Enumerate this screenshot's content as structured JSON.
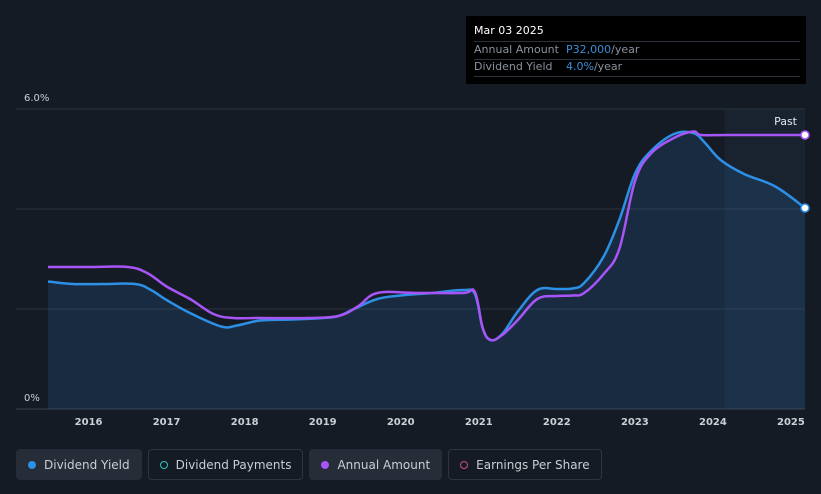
{
  "tooltip": {
    "date": "Mar 03 2025",
    "rows": [
      {
        "label": "Annual Amount",
        "value": "P32,000",
        "unit": "/year"
      },
      {
        "label": "Dividend Yield",
        "value": "4.0%",
        "unit": "/year"
      }
    ]
  },
  "legend": [
    {
      "label": "Dividend Yield",
      "color": "#2d8fe6",
      "style": "filled-dot",
      "active": true
    },
    {
      "label": "Dividend Payments",
      "color": "#2ec4b6",
      "style": "hollow-dot",
      "active": false
    },
    {
      "label": "Annual Amount",
      "color": "#a855f7",
      "style": "filled-dot",
      "active": true
    },
    {
      "label": "Earnings Per Share",
      "color": "#d04a7a",
      "style": "hollow-dot",
      "active": false
    }
  ],
  "chart_data": {
    "type": "line",
    "y_tick_labels": [
      "6.0%",
      "0%"
    ],
    "ylim": [
      0,
      6.0
    ],
    "x_tick_labels": [
      "2016",
      "2017",
      "2018",
      "2019",
      "2020",
      "2021",
      "2022",
      "2023",
      "2024",
      "2025"
    ],
    "xlim": [
      2015.48,
      2025.18
    ],
    "past_region_start": 2024.15,
    "past_label": "Past",
    "grid": true,
    "colors": {
      "yield": "#2d8fe6",
      "amount": "#a855f7"
    },
    "series": [
      {
        "name": "Dividend Yield",
        "area_fill": true,
        "x": [
          2015.48,
          2015.8,
          2016.2,
          2016.6,
          2016.8,
          2017.0,
          2017.3,
          2017.7,
          2017.9,
          2018.2,
          2018.6,
          2019.0,
          2019.2,
          2019.4,
          2019.7,
          2020.0,
          2020.4,
          2020.8,
          2020.95,
          2021.05,
          2021.15,
          2021.3,
          2021.5,
          2021.75,
          2022.0,
          2022.2,
          2022.35,
          2022.6,
          2022.8,
          2023.0,
          2023.2,
          2023.5,
          2023.75,
          2023.9,
          2024.1,
          2024.4,
          2024.8,
          2025.18
        ],
        "values": [
          2.55,
          2.5,
          2.5,
          2.5,
          2.38,
          2.18,
          1.92,
          1.65,
          1.67,
          1.77,
          1.79,
          1.82,
          1.86,
          2.0,
          2.2,
          2.27,
          2.32,
          2.38,
          2.3,
          1.62,
          1.38,
          1.5,
          1.95,
          2.38,
          2.4,
          2.41,
          2.52,
          3.05,
          3.78,
          4.7,
          5.15,
          5.5,
          5.52,
          5.32,
          4.98,
          4.7,
          4.45,
          4.02
        ]
      },
      {
        "name": "Annual Amount",
        "area_fill": false,
        "x": [
          2015.48,
          2016.0,
          2016.5,
          2016.75,
          2017.0,
          2017.3,
          2017.6,
          2017.85,
          2018.2,
          2018.8,
          2019.2,
          2019.45,
          2019.7,
          2020.2,
          2020.8,
          2020.95,
          2021.05,
          2021.15,
          2021.3,
          2021.5,
          2021.75,
          2022.0,
          2022.2,
          2022.35,
          2022.6,
          2022.8,
          2023.0,
          2023.2,
          2023.5,
          2023.75,
          2023.85,
          2024.2,
          2024.8,
          2025.18
        ],
        "values": [
          2.84,
          2.84,
          2.84,
          2.72,
          2.45,
          2.2,
          1.9,
          1.82,
          1.82,
          1.82,
          1.86,
          2.05,
          2.32,
          2.32,
          2.32,
          2.34,
          1.62,
          1.38,
          1.48,
          1.78,
          2.2,
          2.26,
          2.27,
          2.32,
          2.7,
          3.2,
          4.55,
          5.1,
          5.42,
          5.55,
          5.48,
          5.48,
          5.48,
          5.48
        ]
      }
    ]
  }
}
